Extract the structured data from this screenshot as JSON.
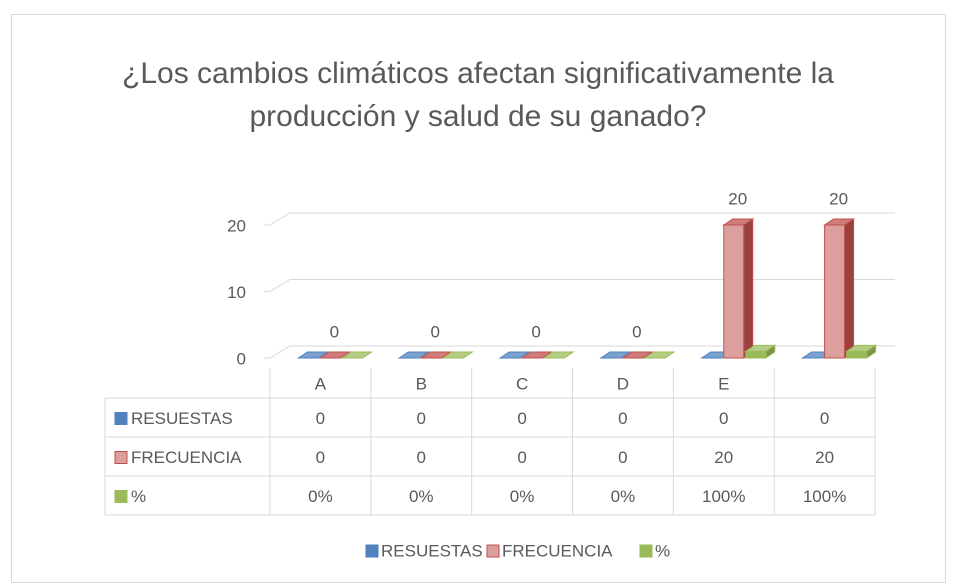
{
  "chart_data": {
    "type": "bar3d",
    "title": "¿Los cambios climáticos afectan significativamente la producción y salud de su ganado?",
    "categories": [
      "A",
      "B",
      "C",
      "D",
      "E",
      null
    ],
    "series": [
      {
        "name": "RESUESTAS",
        "color": "#4f81bd",
        "values": [
          0,
          0,
          0,
          0,
          0,
          0
        ]
      },
      {
        "name": "FRECUENCIA",
        "color": "#c0504d",
        "values": [
          0,
          0,
          0,
          0,
          20,
          20
        ]
      },
      {
        "name": "%",
        "color": "#9bbb59",
        "values": [
          0,
          0,
          0,
          0,
          1,
          1
        ],
        "value_labels": [
          "0%",
          "0%",
          "0%",
          "0%",
          "100%",
          "100%"
        ]
      }
    ],
    "data_labels_series": 1,
    "ylim": [
      0,
      20
    ],
    "yticks": [
      0,
      10,
      20
    ],
    "grid": true,
    "legend": "bottom",
    "data_table": true
  }
}
